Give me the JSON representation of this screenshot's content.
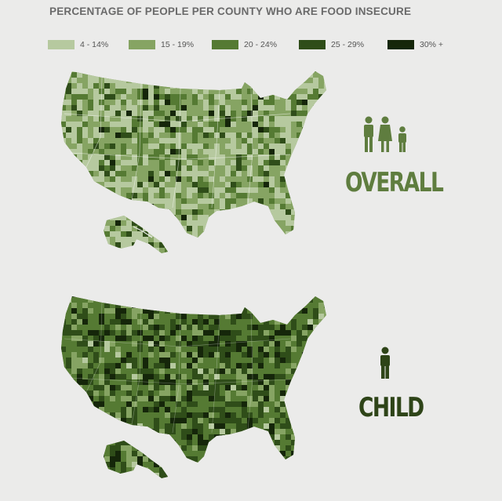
{
  "title": "PERCENTAGE OF PEOPLE PER COUNTY WHO ARE FOOD INSECURE",
  "legend": [
    {
      "label": "4 - 14%",
      "color": "#b6c99f"
    },
    {
      "label": "15 - 19%",
      "color": "#86a463"
    },
    {
      "label": "20 - 24%",
      "color": "#557a33"
    },
    {
      "label": "25 - 29%",
      "color": "#2f4d19"
    },
    {
      "label": "30% +",
      "color": "#15260a"
    }
  ],
  "panels": [
    {
      "label": "OVERALL",
      "icon": "family-icon",
      "level_weights": [
        0.38,
        0.34,
        0.2,
        0.06,
        0.02
      ]
    },
    {
      "label": "CHILD",
      "icon": "child-icon",
      "level_weights": [
        0.03,
        0.16,
        0.38,
        0.3,
        0.13
      ]
    }
  ]
}
